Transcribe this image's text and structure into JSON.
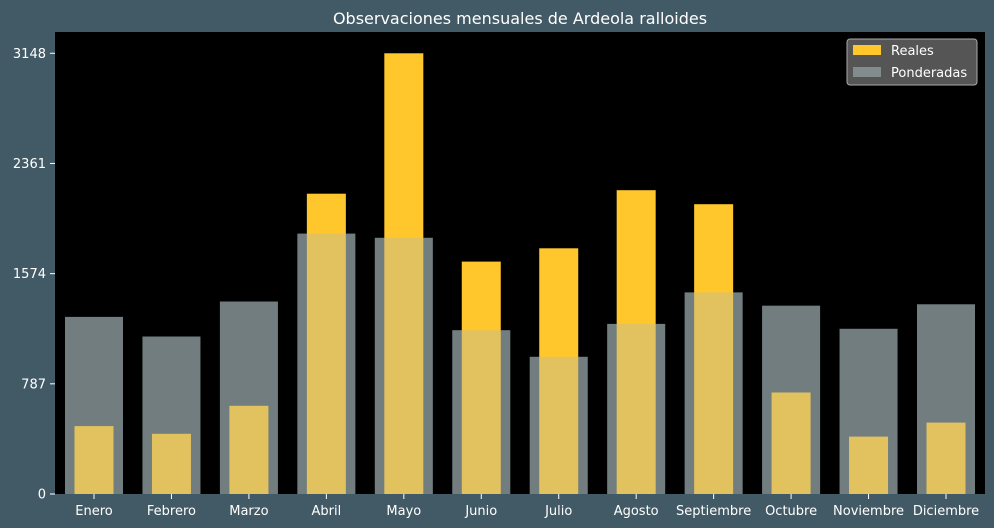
{
  "colors": {
    "figure_bg": "#425a66",
    "plot_bg": "#000000",
    "actual": "#ffc72c",
    "weighted": "#a8babc",
    "text": "#ffffff",
    "legend_bg": "#555555",
    "legend_border": "#aaaaaa"
  },
  "chart_data": {
    "type": "bar",
    "title": "Observaciones mensuales de Ardeola ralloides",
    "xlabel": "",
    "ylabel": "",
    "ylim": [
      0,
      3300
    ],
    "yticks": [
      0,
      787,
      1574,
      2361,
      3148
    ],
    "categories": [
      "Enero",
      "Febrero",
      "Marzo",
      "Abril",
      "Mayo",
      "Junio",
      "Julio",
      "Agosto",
      "Septiembre",
      "Octubre",
      "Noviembre",
      "Diciembre"
    ],
    "series": [
      {
        "name": "Reales",
        "color": "#ffc72c",
        "values": [
          485,
          430,
          630,
          2145,
          3148,
          1660,
          1755,
          2170,
          2070,
          725,
          410,
          510
        ]
      },
      {
        "name": "Ponderadas",
        "color": "#a8babc",
        "values": [
          1265,
          1125,
          1375,
          1860,
          1830,
          1170,
          980,
          1215,
          1440,
          1345,
          1180,
          1355
        ]
      }
    ],
    "legend": {
      "position": "top-right"
    },
    "grid": false
  }
}
